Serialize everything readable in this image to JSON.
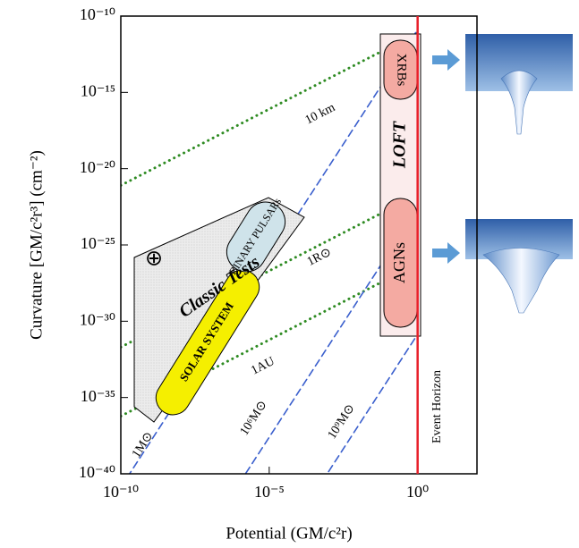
{
  "chart_data": {
    "type": "line",
    "x_label": "Potential (GM/c²r)",
    "y_label": "Curvature [GM/c²r³] (cm⁻²)",
    "xscale": "log",
    "yscale": "log",
    "xlim": [
      1e-10,
      100
    ],
    "ylim": [
      1e-40,
      1e-10
    ],
    "xticks": [
      {
        "value": 1e-10,
        "label": "10⁻¹⁰"
      },
      {
        "value": 1e-05,
        "label": "10⁻⁵"
      },
      {
        "value": 1,
        "label": "10⁰"
      }
    ],
    "yticks": [
      {
        "value": 1e-10,
        "label": "10⁻¹⁰"
      },
      {
        "value": 1e-15,
        "label": "10⁻¹⁵"
      },
      {
        "value": 1e-20,
        "label": "10⁻²⁰"
      },
      {
        "value": 1e-25,
        "label": "10⁻²⁵"
      },
      {
        "value": 1e-30,
        "label": "10⁻³⁰"
      },
      {
        "value": 1e-35,
        "label": "10⁻³⁵"
      },
      {
        "value": 1e-40,
        "label": "10⁻⁴⁰"
      }
    ],
    "series": [
      {
        "name": "10 km",
        "color": "#2e8b22",
        "style": "dotted",
        "x": [
          1e-10,
          1
        ],
        "values": [
          8e-22,
          8e-12
        ]
      },
      {
        "name": "1R⊙",
        "color": "#2e8b22",
        "style": "dotted",
        "x": [
          1e-10,
          1
        ],
        "values": [
          2e-32,
          2e-22
        ]
      },
      {
        "name": "1AU",
        "color": "#2e8b22",
        "style": "dotted",
        "x": [
          1e-10,
          1
        ],
        "values": [
          6e-37,
          6e-27
        ]
      },
      {
        "name": "1M⊙",
        "color": "#3a5fcd",
        "style": "dashed",
        "x": [
          1e-10,
          1
        ],
        "values": [
          1.3e-41,
          1.3e-11
        ]
      },
      {
        "name": "10⁶M⊙",
        "color": "#3a5fcd",
        "style": "dashed",
        "x": [
          1e-06,
          1
        ],
        "values": [
          2.5e-41,
          2.5e-23
        ]
      },
      {
        "name": "10⁹M⊙",
        "color": "#3a5fcd",
        "style": "dashed",
        "x": [
          0.001,
          1
        ],
        "values": [
          1.4e-40,
          1.4e-31
        ]
      }
    ],
    "event_horizon": {
      "label": "Event Horizon",
      "x": 1,
      "color": "#e8202a"
    },
    "annotations": [
      "Classic Tests",
      "SOLAR SYSTEM",
      "BINARY PULSARs",
      "LOFT",
      "XRBs",
      "AGNs",
      "⊕"
    ]
  }
}
